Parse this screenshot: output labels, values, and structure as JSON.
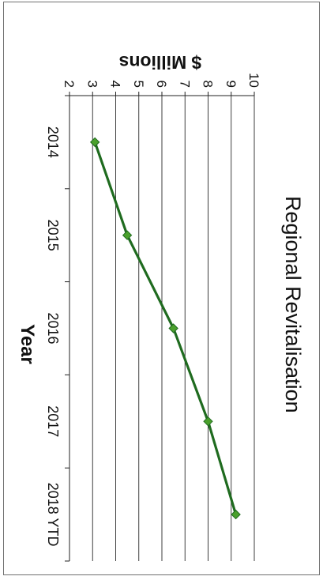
{
  "chart_data": {
    "type": "line",
    "title": "Regional Revitalisation",
    "xlabel": "Year",
    "ylabel": "$ Millions",
    "categories": [
      "2014",
      "2015",
      "2016",
      "2017",
      "2018 YTD"
    ],
    "series": [
      {
        "values": [
          3.1,
          4.5,
          6.5,
          8.0,
          9.2
        ]
      }
    ],
    "ylim": [
      2,
      10
    ],
    "yticks": [
      "2",
      "3",
      "4",
      "5",
      "6",
      "7",
      "8",
      "9",
      "10"
    ],
    "grid": true,
    "orientation": "rotated 90 degrees clockwise",
    "line_color": "#1f6b1f",
    "marker_color": "#4aa02c"
  }
}
